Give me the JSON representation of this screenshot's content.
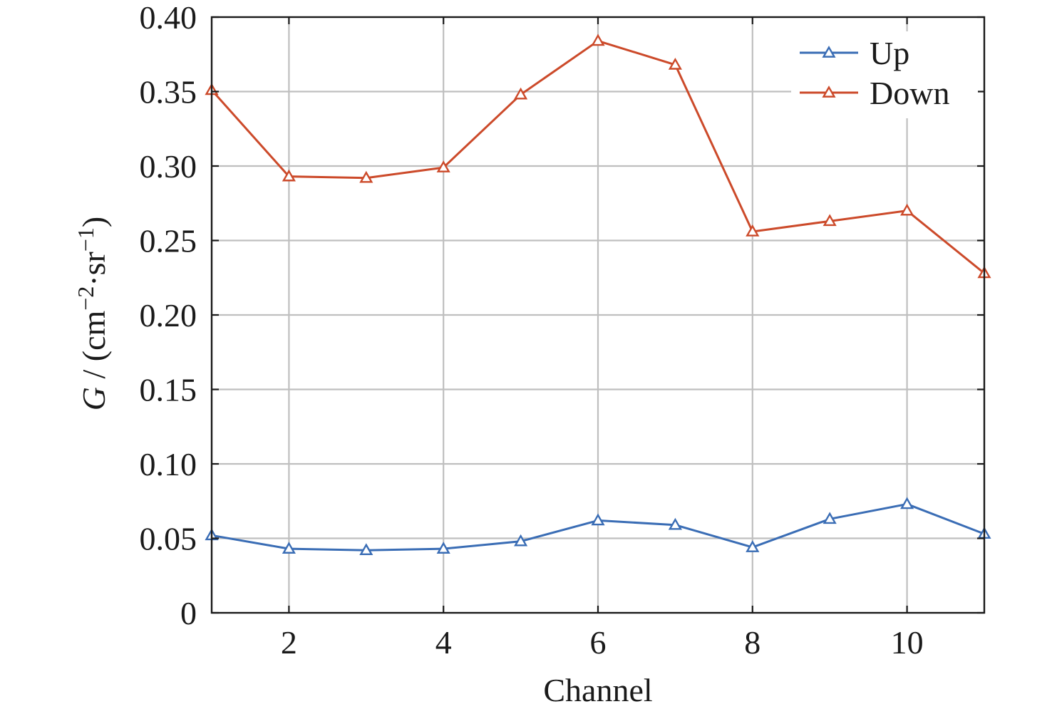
{
  "chart_data": {
    "type": "line",
    "title": "",
    "xlabel": "Channel",
    "ylabel_italic": "G",
    "ylabel_unit": " / (cm−2·sr−1)",
    "ylabel_parts": {
      "open": " / (cm",
      "sup1": "−2",
      "mid": "·sr",
      "sup2": "−1",
      "close": ")"
    },
    "xlim": [
      1,
      11
    ],
    "ylim": [
      0,
      0.4
    ],
    "x_ticks": [
      2,
      4,
      6,
      8,
      10
    ],
    "x_tick_labels": [
      "2",
      "4",
      "6",
      "8",
      "10"
    ],
    "y_ticks": [
      0,
      0.05,
      0.1,
      0.15,
      0.2,
      0.25,
      0.3,
      0.35,
      0.4
    ],
    "y_tick_labels": [
      "0",
      "0.05",
      "0.10",
      "0.15",
      "0.20",
      "0.25",
      "0.30",
      "0.35",
      "0.40"
    ],
    "grid": true,
    "legend_position": "top-right",
    "x": [
      1,
      2,
      3,
      4,
      5,
      6,
      7,
      8,
      9,
      10,
      11
    ],
    "series": [
      {
        "name": "Up",
        "color": "#3a6db5",
        "marker": "triangle-open",
        "values": [
          0.052,
          0.043,
          0.042,
          0.043,
          0.048,
          0.062,
          0.059,
          0.044,
          0.063,
          0.073,
          0.053
        ]
      },
      {
        "name": "Down",
        "color": "#cc4a2a",
        "marker": "triangle-open",
        "values": [
          0.351,
          0.293,
          0.292,
          0.299,
          0.348,
          0.384,
          0.368,
          0.256,
          0.263,
          0.27,
          0.228
        ]
      }
    ]
  }
}
